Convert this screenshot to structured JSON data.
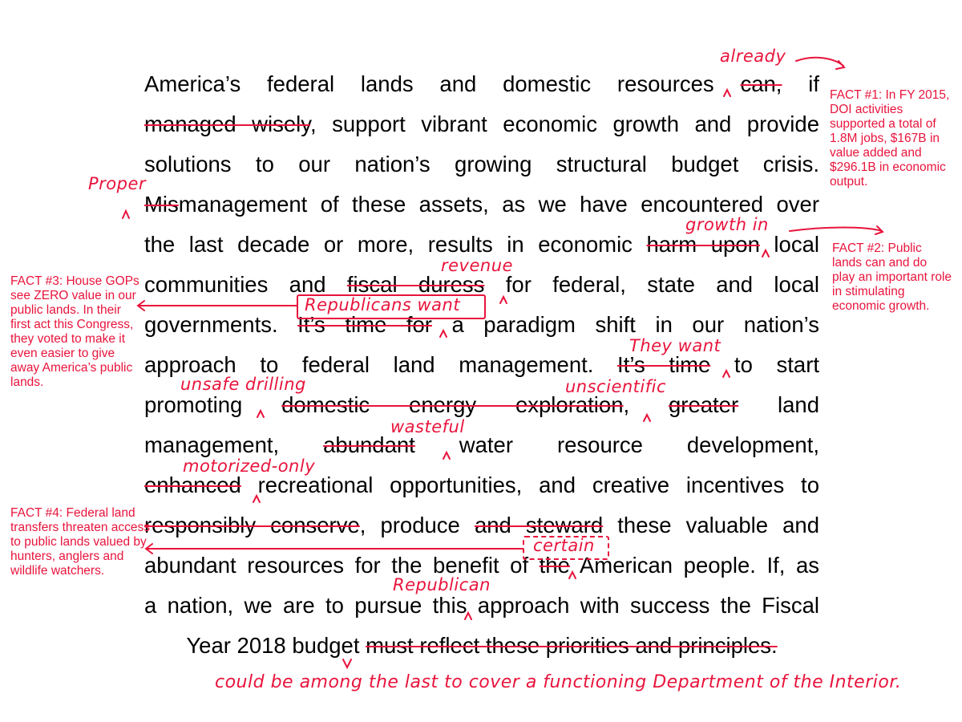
{
  "colors": {
    "text": "#000000",
    "annotation": "#e8143c"
  },
  "lines": [
    [
      {
        "t": "America’s federal lands and domestic resources "
      },
      {
        "t": "can,",
        "s": true
      },
      {
        "t": " if"
      }
    ],
    [
      {
        "t": "managed wisely",
        "s": true
      },
      {
        "t": ", support vibrant economic growth and provide"
      }
    ],
    [
      {
        "t": "solutions to our nation’s growing structural budget crisis."
      }
    ],
    [
      {
        "t": "Mis",
        "s": true
      },
      {
        "t": "management of these assets, as we have encountered over"
      }
    ],
    [
      {
        "t": "the last decade or more, results in economic "
      },
      {
        "t": "harm upon",
        "s": true
      },
      {
        "t": " local"
      }
    ],
    [
      {
        "t": "communities and "
      },
      {
        "t": "fiscal duress",
        "s": true
      },
      {
        "t": " for federal, state and local"
      }
    ],
    [
      {
        "t": "governments. "
      },
      {
        "t": "It’s time for",
        "s": true
      },
      {
        "t": " a paradigm shift in our nation’s"
      }
    ],
    [
      {
        "t": "approach to federal land management. "
      },
      {
        "t": "It’s time",
        "s": true
      },
      {
        "t": " to start"
      }
    ],
    [
      {
        "t": "promoting "
      },
      {
        "t": "domestic energy exploration",
        "s": true
      },
      {
        "t": ", "
      },
      {
        "t": "greater",
        "s": true
      },
      {
        "t": " land"
      }
    ],
    [
      {
        "t": "management, "
      },
      {
        "t": "abundant",
        "s": true
      },
      {
        "t": " water resource development,"
      }
    ],
    [
      {
        "t": "enhanced",
        "s": true
      },
      {
        "t": " recreational opportunities, and creative incentives to"
      }
    ],
    [
      {
        "t": "responsibly conserve",
        "s": true
      },
      {
        "t": ", produce "
      },
      {
        "t": "and steward",
        "s": true
      },
      {
        "t": " these valuable and"
      }
    ],
    [
      {
        "t": "abundant resources for the benefit of "
      },
      {
        "t": "the",
        "s": true
      },
      {
        "t": " American people. If, as"
      }
    ],
    [
      {
        "t": "a nation, we are to pursue this approach with success the Fiscal"
      }
    ],
    [
      {
        "t": "Year 2018 budget "
      },
      {
        "t": "must reflect these priorities and principles.",
        "s": true
      }
    ]
  ],
  "insertions": {
    "already": "already",
    "proper": "Proper",
    "growth_in": "growth in",
    "revenue": "revenue",
    "republicans_want": "Republicans want",
    "they_want": "They want",
    "unsafe_drilling": "unsafe drilling",
    "unscientific": "unscientific",
    "wasteful": "wasteful",
    "motorized_only": "motorized-only",
    "certain": "certain",
    "republican": "Republican",
    "closing": "could be among the last to cover a functioning Department of the Interior."
  },
  "facts": {
    "fact1": "FACT #1: In FY 2015, DOI activities supported a total of 1.8M jobs, $167B in value added and $296.1B in economic output.",
    "fact2": "FACT #2: Public lands can and do play an important role in stimulating economic growth.",
    "fact3": "FACT #3: House GOPs see ZERO value in our public lands. In their first act this Congress, they voted to make it even easier to give away America’s public lands.",
    "fact4": "FACT #4: Federal land transfers threaten access to public lands valued by hunters, anglers and wildlife watchers."
  }
}
